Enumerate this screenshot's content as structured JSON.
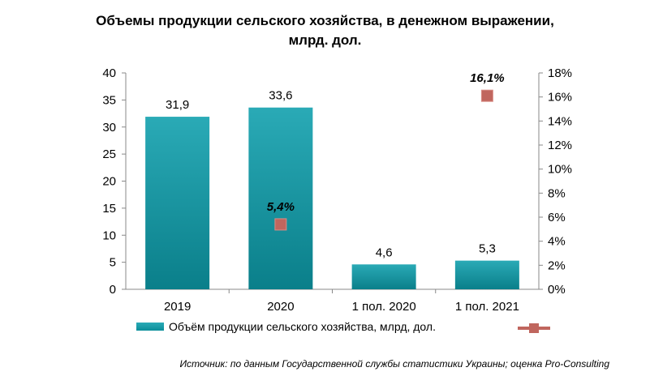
{
  "title_line1": "Объемы продукции сельского хозяйства, в денежном выражении,",
  "title_line2": "млрд. дол.",
  "legend": {
    "bar_label": "Объём продукции  сельского хозяйства, млрд, дол.",
    "line_label": ""
  },
  "source": "Источник: по данным Государственной службы статистики Украины; оценка Pro-Consulting",
  "colors": {
    "bar": "#0f9aa6",
    "marker": "#c0665e"
  },
  "chart_data": {
    "type": "bar",
    "title": "Объемы продукции сельского хозяйства, в денежном выражении, млрд. дол.",
    "categories": [
      "2019",
      "2020",
      "1 пол. 2020",
      "1 пол. 2021"
    ],
    "series": [
      {
        "name": "Объём продукции  сельского хозяйства, млрд, дол.",
        "type": "bar",
        "axis": "left",
        "values": [
          31.9,
          33.6,
          4.6,
          5.3
        ],
        "labels": [
          "31,9",
          "33,6",
          "4,6",
          "5,3"
        ]
      },
      {
        "type": "scatter",
        "axis": "right",
        "values": [
          null,
          5.4,
          null,
          16.1
        ],
        "labels": [
          "",
          "5,4%",
          "",
          "16,1%"
        ]
      }
    ],
    "ylim": [
      0,
      40
    ],
    "yticks": [
      "0",
      "5",
      "10",
      "15",
      "20",
      "25",
      "30",
      "35",
      "40"
    ],
    "y2lim": [
      0,
      18
    ],
    "y2ticks": [
      "0%",
      "2%",
      "4%",
      "6%",
      "8%",
      "10%",
      "12%",
      "14%",
      "16%",
      "18%"
    ],
    "grid": false,
    "legend_position": "bottom"
  }
}
